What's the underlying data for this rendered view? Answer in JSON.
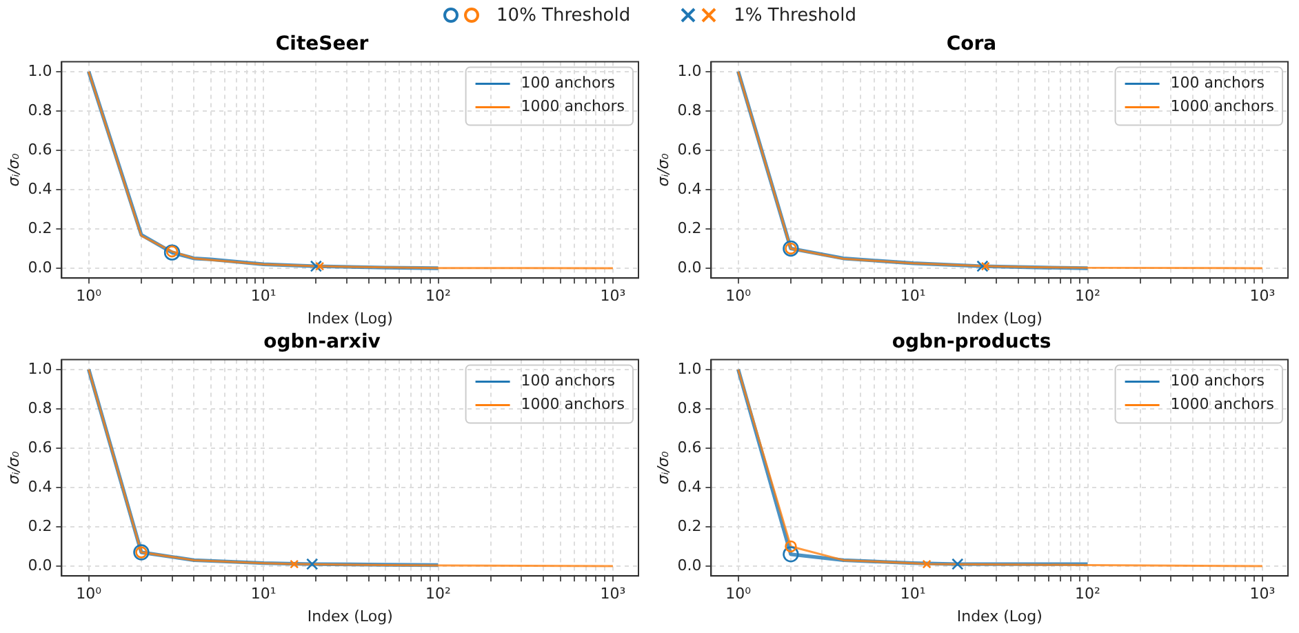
{
  "chart_data": [
    {
      "type": "line",
      "title": "CiteSeer",
      "xlabel": "Index (Log)",
      "ylabel": "σᵢ/σ₀",
      "log": "x",
      "grid": true,
      "legend": "top right",
      "xlim": [
        0.72,
        1400
      ],
      "xticks": [
        {
          "value": 1,
          "label": "10⁰"
        },
        {
          "value": 2,
          "label": null
        },
        {
          "value": 3,
          "label": null
        },
        {
          "value": 4,
          "label": null
        },
        {
          "value": 5,
          "label": null
        },
        {
          "value": 6,
          "label": null
        },
        {
          "value": 7,
          "label": null
        },
        {
          "value": 8,
          "label": null
        },
        {
          "value": 9,
          "label": null
        },
        {
          "value": 10,
          "label": "10¹"
        },
        {
          "value": 20,
          "label": null
        },
        {
          "value": 30,
          "label": null
        },
        {
          "value": 40,
          "label": null
        },
        {
          "value": 50,
          "label": null
        },
        {
          "value": 60,
          "label": null
        },
        {
          "value": 70,
          "label": null
        },
        {
          "value": 80,
          "label": null
        },
        {
          "value": 90,
          "label": null
        },
        {
          "value": 100,
          "label": "10²"
        },
        {
          "value": 200,
          "label": null
        },
        {
          "value": 300,
          "label": null
        },
        {
          "value": 400,
          "label": null
        },
        {
          "value": 500,
          "label": null
        },
        {
          "value": 600,
          "label": null
        },
        {
          "value": 700,
          "label": null
        },
        {
          "value": 800,
          "label": null
        },
        {
          "value": 900,
          "label": null
        },
        {
          "value": 1000,
          "label": "10³"
        }
      ],
      "ylim": [
        -0.05,
        1.05
      ],
      "yticks": [
        {
          "value": 0,
          "label": "0.0"
        },
        {
          "value": 0.2,
          "label": "0.2"
        },
        {
          "value": 0.4,
          "label": "0.4"
        },
        {
          "value": 0.6,
          "label": "0.6"
        },
        {
          "value": 0.8,
          "label": "0.8"
        },
        {
          "value": 1,
          "label": "1.0"
        }
      ],
      "series": [
        {
          "name": "100 anchors",
          "color": "#1f77b4",
          "x": [
            1,
            2,
            3,
            4,
            5,
            10,
            20,
            50,
            100
          ],
          "values": [
            1.0,
            0.17,
            0.08,
            0.05,
            0.045,
            0.02,
            0.01,
            0.003,
            0.0
          ]
        },
        {
          "name": "1000 anchors",
          "color": "#ff7f0e",
          "x": [
            1,
            2,
            3,
            4,
            5,
            10,
            20,
            50,
            100,
            1000
          ],
          "values": [
            1.0,
            0.165,
            0.085,
            0.05,
            0.042,
            0.02,
            0.01,
            0.004,
            0.001,
            0.0
          ]
        },
        {
          "type": "scatter",
          "name": "10% Threshold",
          "marker": "circle",
          "colors": [
            "#1f77b4",
            "#ff7f0e"
          ],
          "x": [
            3,
            3
          ],
          "values": [
            0.08,
            0.085
          ]
        },
        {
          "type": "scatter",
          "name": "1% Threshold",
          "marker": "cross",
          "colors": [
            "#1f77b4",
            "#ff7f0e"
          ],
          "x": [
            20,
            21
          ],
          "values": [
            0.01,
            0.01
          ]
        }
      ]
    },
    {
      "type": "line",
      "title": "Cora",
      "xlabel": "Index (Log)",
      "ylabel": "σᵢ/σ₀",
      "log": "x",
      "grid": true,
      "legend": "top right",
      "xlim": [
        0.72,
        1400
      ],
      "xticks": [
        {
          "value": 1,
          "label": "10⁰"
        },
        {
          "value": 2,
          "label": null
        },
        {
          "value": 3,
          "label": null
        },
        {
          "value": 4,
          "label": null
        },
        {
          "value": 5,
          "label": null
        },
        {
          "value": 6,
          "label": null
        },
        {
          "value": 7,
          "label": null
        },
        {
          "value": 8,
          "label": null
        },
        {
          "value": 9,
          "label": null
        },
        {
          "value": 10,
          "label": "10¹"
        },
        {
          "value": 20,
          "label": null
        },
        {
          "value": 30,
          "label": null
        },
        {
          "value": 40,
          "label": null
        },
        {
          "value": 50,
          "label": null
        },
        {
          "value": 60,
          "label": null
        },
        {
          "value": 70,
          "label": null
        },
        {
          "value": 80,
          "label": null
        },
        {
          "value": 90,
          "label": null
        },
        {
          "value": 100,
          "label": "10²"
        },
        {
          "value": 200,
          "label": null
        },
        {
          "value": 300,
          "label": null
        },
        {
          "value": 400,
          "label": null
        },
        {
          "value": 500,
          "label": null
        },
        {
          "value": 600,
          "label": null
        },
        {
          "value": 700,
          "label": null
        },
        {
          "value": 800,
          "label": null
        },
        {
          "value": 900,
          "label": null
        },
        {
          "value": 1000,
          "label": "10³"
        }
      ],
      "ylim": [
        -0.05,
        1.05
      ],
      "yticks": [
        {
          "value": 0,
          "label": "0.0"
        },
        {
          "value": 0.2,
          "label": "0.2"
        },
        {
          "value": 0.4,
          "label": "0.4"
        },
        {
          "value": 0.6,
          "label": "0.6"
        },
        {
          "value": 0.8,
          "label": "0.8"
        },
        {
          "value": 1,
          "label": "1.0"
        }
      ],
      "series": [
        {
          "name": "100 anchors",
          "color": "#1f77b4",
          "x": [
            1,
            2,
            4,
            10,
            25,
            50,
            100
          ],
          "values": [
            1.0,
            0.1,
            0.05,
            0.025,
            0.01,
            0.004,
            0.0
          ]
        },
        {
          "name": "1000 anchors",
          "color": "#ff7f0e",
          "x": [
            1,
            2,
            4,
            10,
            26,
            50,
            100,
            1000
          ],
          "values": [
            1.0,
            0.1,
            0.048,
            0.025,
            0.01,
            0.005,
            0.002,
            0.0
          ]
        },
        {
          "type": "scatter",
          "marker": "circle",
          "colors": [
            "#1f77b4",
            "#ff7f0e"
          ],
          "x": [
            2,
            2
          ],
          "values": [
            0.1,
            0.1
          ]
        },
        {
          "type": "scatter",
          "marker": "cross",
          "colors": [
            "#1f77b4",
            "#ff7f0e"
          ],
          "x": [
            25,
            26
          ],
          "values": [
            0.01,
            0.01
          ]
        }
      ]
    },
    {
      "type": "line",
      "title": "ogbn-arxiv",
      "xlabel": "Index (Log)",
      "ylabel": "σᵢ/σ₀",
      "log": "x",
      "grid": true,
      "legend": "top right",
      "xlim": [
        0.72,
        1400
      ],
      "xticks": [
        {
          "value": 1,
          "label": "10⁰"
        },
        {
          "value": 2,
          "label": null
        },
        {
          "value": 3,
          "label": null
        },
        {
          "value": 4,
          "label": null
        },
        {
          "value": 5,
          "label": null
        },
        {
          "value": 6,
          "label": null
        },
        {
          "value": 7,
          "label": null
        },
        {
          "value": 8,
          "label": null
        },
        {
          "value": 9,
          "label": null
        },
        {
          "value": 10,
          "label": "10¹"
        },
        {
          "value": 20,
          "label": null
        },
        {
          "value": 30,
          "label": null
        },
        {
          "value": 40,
          "label": null
        },
        {
          "value": 50,
          "label": null
        },
        {
          "value": 60,
          "label": null
        },
        {
          "value": 70,
          "label": null
        },
        {
          "value": 80,
          "label": null
        },
        {
          "value": 90,
          "label": null
        },
        {
          "value": 100,
          "label": "10²"
        },
        {
          "value": 200,
          "label": null
        },
        {
          "value": 300,
          "label": null
        },
        {
          "value": 400,
          "label": null
        },
        {
          "value": 500,
          "label": null
        },
        {
          "value": 600,
          "label": null
        },
        {
          "value": 700,
          "label": null
        },
        {
          "value": 800,
          "label": null
        },
        {
          "value": 900,
          "label": null
        },
        {
          "value": 1000,
          "label": "10³"
        }
      ],
      "ylim": [
        -0.05,
        1.05
      ],
      "yticks": [
        {
          "value": 0,
          "label": "0.0"
        },
        {
          "value": 0.2,
          "label": "0.2"
        },
        {
          "value": 0.4,
          "label": "0.4"
        },
        {
          "value": 0.6,
          "label": "0.6"
        },
        {
          "value": 0.8,
          "label": "0.8"
        },
        {
          "value": 1,
          "label": "1.0"
        }
      ],
      "series": [
        {
          "name": "100 anchors",
          "color": "#1f77b4",
          "x": [
            1,
            2,
            4,
            10,
            19,
            50,
            100
          ],
          "values": [
            1.0,
            0.07,
            0.03,
            0.015,
            0.01,
            0.007,
            0.005
          ]
        },
        {
          "name": "1000 anchors",
          "color": "#ff7f0e",
          "x": [
            1,
            2,
            4,
            10,
            15,
            50,
            100,
            1000
          ],
          "values": [
            1.0,
            0.07,
            0.03,
            0.015,
            0.01,
            0.005,
            0.003,
            0.0
          ]
        },
        {
          "type": "scatter",
          "marker": "circle",
          "colors": [
            "#1f77b4",
            "#ff7f0e"
          ],
          "x": [
            2,
            2
          ],
          "values": [
            0.07,
            0.07
          ]
        },
        {
          "type": "scatter",
          "marker": "cross",
          "colors": [
            "#1f77b4",
            "#ff7f0e"
          ],
          "x": [
            19,
            15
          ],
          "values": [
            0.01,
            0.01
          ]
        }
      ]
    },
    {
      "type": "line",
      "title": "ogbn-products",
      "xlabel": "Index (Log)",
      "ylabel": "σᵢ/σ₀",
      "log": "x",
      "grid": true,
      "legend": "top right",
      "xlim": [
        0.72,
        1400
      ],
      "xticks": [
        {
          "value": 1,
          "label": "10⁰"
        },
        {
          "value": 2,
          "label": null
        },
        {
          "value": 3,
          "label": null
        },
        {
          "value": 4,
          "label": null
        },
        {
          "value": 5,
          "label": null
        },
        {
          "value": 6,
          "label": null
        },
        {
          "value": 7,
          "label": null
        },
        {
          "value": 8,
          "label": null
        },
        {
          "value": 9,
          "label": null
        },
        {
          "value": 10,
          "label": "10¹"
        },
        {
          "value": 20,
          "label": null
        },
        {
          "value": 30,
          "label": null
        },
        {
          "value": 40,
          "label": null
        },
        {
          "value": 50,
          "label": null
        },
        {
          "value": 60,
          "label": null
        },
        {
          "value": 70,
          "label": null
        },
        {
          "value": 80,
          "label": null
        },
        {
          "value": 90,
          "label": null
        },
        {
          "value": 100,
          "label": "10²"
        },
        {
          "value": 200,
          "label": null
        },
        {
          "value": 300,
          "label": null
        },
        {
          "value": 400,
          "label": null
        },
        {
          "value": 500,
          "label": null
        },
        {
          "value": 600,
          "label": null
        },
        {
          "value": 700,
          "label": null
        },
        {
          "value": 800,
          "label": null
        },
        {
          "value": 900,
          "label": null
        },
        {
          "value": 1000,
          "label": "10³"
        }
      ],
      "ylim": [
        -0.05,
        1.05
      ],
      "yticks": [
        {
          "value": 0,
          "label": "0.0"
        },
        {
          "value": 0.2,
          "label": "0.2"
        },
        {
          "value": 0.4,
          "label": "0.4"
        },
        {
          "value": 0.6,
          "label": "0.6"
        },
        {
          "value": 0.8,
          "label": "0.8"
        },
        {
          "value": 1,
          "label": "1.0"
        }
      ],
      "series": [
        {
          "name": "100 anchors",
          "color": "#1f77b4",
          "x": [
            1,
            2,
            4,
            10,
            18,
            50,
            100
          ],
          "values": [
            1.0,
            0.06,
            0.03,
            0.015,
            0.01,
            0.01,
            0.01
          ]
        },
        {
          "name": "1000 anchors",
          "color": "#ff7f0e",
          "x": [
            1,
            2,
            4,
            10,
            12,
            50,
            100,
            1000
          ],
          "values": [
            1.0,
            0.1,
            0.03,
            0.015,
            0.01,
            0.007,
            0.005,
            0.0
          ]
        },
        {
          "type": "scatter",
          "marker": "circle",
          "colors": [
            "#1f77b4",
            "#ff7f0e"
          ],
          "x": [
            2,
            2
          ],
          "values": [
            0.06,
            0.1
          ]
        },
        {
          "type": "scatter",
          "marker": "cross",
          "colors": [
            "#1f77b4",
            "#ff7f0e"
          ],
          "x": [
            18,
            12
          ],
          "values": [
            0.01,
            0.01
          ]
        }
      ]
    }
  ]
}
